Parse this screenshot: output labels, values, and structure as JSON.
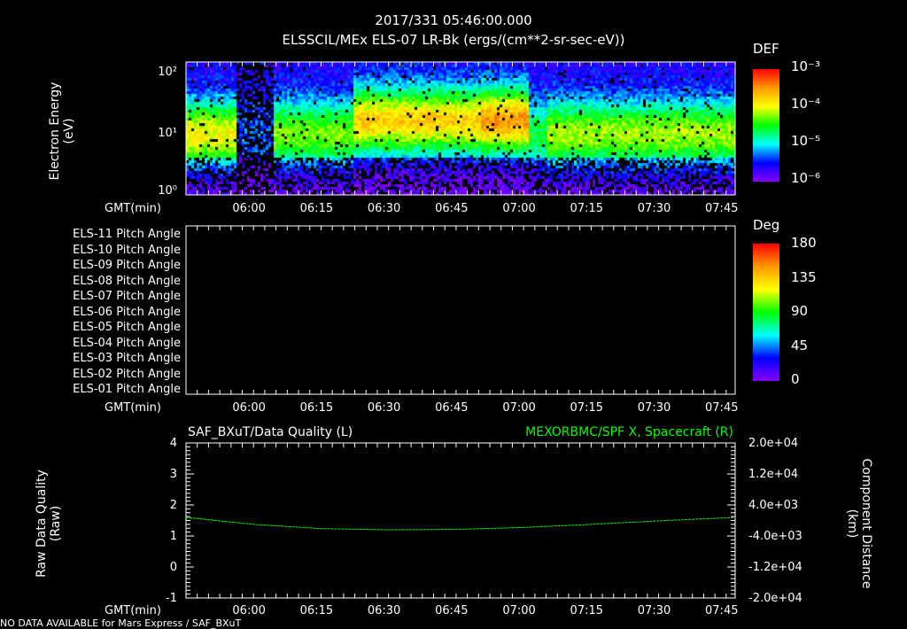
{
  "header": {
    "time": "2017/331 05:46:00.000",
    "title": "ELSSCIL/MEx ELS-07 LR-Bk  (ergs/(cm**2-sr-sec-eV))"
  },
  "panel1": {
    "ylabel1": "Electron Energy",
    "ylabel2": "(eV)",
    "yticks": [
      "10²",
      "10¹",
      "10⁰"
    ],
    "cbar_title": "DEF",
    "cbar_ticks": [
      "10⁻³",
      "10⁻⁴",
      "10⁻⁵",
      "10⁻⁶"
    ]
  },
  "panel2": {
    "rows": [
      "ELS-11 Pitch Angle",
      "ELS-10 Pitch Angle",
      "ELS-09 Pitch Angle",
      "ELS-08 Pitch Angle",
      "ELS-07 Pitch Angle",
      "ELS-06 Pitch Angle",
      "ELS-05 Pitch Angle",
      "ELS-04 Pitch Angle",
      "ELS-03 Pitch Angle",
      "ELS-02 Pitch Angle",
      "ELS-01 Pitch Angle"
    ],
    "cbar_title": "Deg",
    "cbar_ticks": [
      "180",
      "135",
      "90",
      "45",
      "0"
    ]
  },
  "panel3": {
    "left_title": "SAF_BXuT/Data Quality (L)",
    "right_title": "MEXORBMC/SPF X, Spacecraft (R)",
    "ylabel_left1": "Raw Data Quality",
    "ylabel_left2": "(Raw)",
    "ylabel_right1": "Component Distance",
    "ylabel_right2": "(km)",
    "left_ticks": [
      "4",
      "3",
      "2",
      "1",
      "0",
      "-1"
    ],
    "right_ticks": [
      "2.0e+04",
      "1.2e+04",
      "4.0e+03",
      "-4.0e+03",
      "-1.2e+04",
      "-2.0e+04"
    ],
    "line_color": "#00ff00"
  },
  "xaxis": {
    "label": "GMT(min)",
    "ticks": [
      "06:00",
      "06:15",
      "06:30",
      "06:45",
      "07:00",
      "07:15",
      "07:30",
      "07:45"
    ]
  },
  "footer": "NO DATA AVAILABLE for Mars Express / SAF_BXuT",
  "chart_data": {
    "type": "line",
    "title": "MEXORBMC/SPF X, Spacecraft",
    "xlabel": "GMT(min)",
    "ylabel": "Component Distance (km)",
    "xlim_minutes_after_0546": [
      0,
      122
    ],
    "ylim": [
      -20000,
      20000
    ],
    "x": [
      0,
      15,
      30,
      45,
      60,
      75,
      90,
      105,
      122
    ],
    "values": [
      800,
      -1000,
      -2100,
      -2400,
      -2300,
      -1800,
      -1000,
      -100,
      800
    ]
  }
}
